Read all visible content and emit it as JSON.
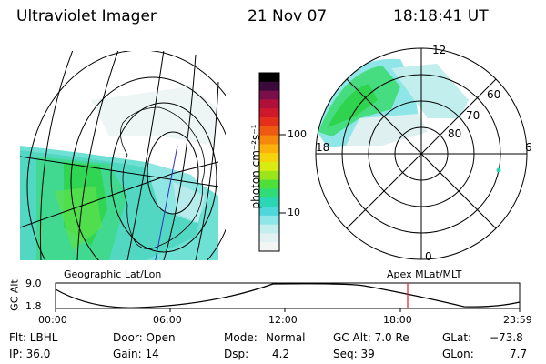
{
  "header": {
    "instrument": "Ultraviolet Imager",
    "date": "21 Nov 07",
    "time": "18:18:41 UT"
  },
  "colorbar": {
    "unit_label": "photon cm⁻²s⁻¹",
    "ticks": [
      "100",
      "10"
    ],
    "colors": [
      "#000000",
      "#3a0a3a",
      "#7b0f4a",
      "#b0103a",
      "#d0182b",
      "#e4301a",
      "#ee5a12",
      "#f6880c",
      "#fbb00a",
      "#f6d40d",
      "#d8ec12",
      "#9be51b",
      "#4ee03a",
      "#2fdc78",
      "#2ad6b4",
      "#4ed8dc",
      "#8ee6e8",
      "#c2eeee",
      "#e2f2f2",
      "#f4f6f6"
    ]
  },
  "polar": {
    "mlt_labels": [
      "12",
      "18",
      "6",
      "0"
    ],
    "lat_labels": [
      "60",
      "70",
      "80"
    ]
  },
  "orbit_panel": {
    "left_caption": "Geographic Lat/Lon",
    "right_caption": "Apex MLat/MLT",
    "ylabel": "GC Alt",
    "y_ticks": [
      "9.0",
      "1.8"
    ],
    "x_ticks": [
      "00:00",
      "06:00",
      "12:00",
      "18:00",
      "23:59"
    ]
  },
  "params": {
    "flt": "Flt: LBHL",
    "ip": "IP: 36.0",
    "door": "Door: Open",
    "gain": "Gain: 14",
    "mode_label": "Mode:",
    "mode_value": "Normal",
    "dsp_label": "Dsp:",
    "dsp_value": "4.2",
    "gcalt": "GC Alt: 7.0 Re",
    "seq": "Seq: 39",
    "glat_label": "GLat:",
    "glat_value": "−73.8",
    "glon_label": "GLon:",
    "glon_value": "7.7"
  }
}
